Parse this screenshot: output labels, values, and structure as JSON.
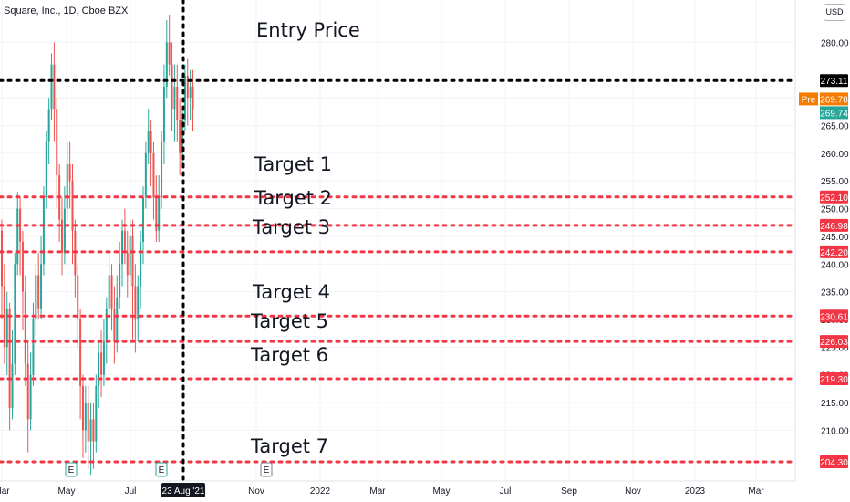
{
  "header": {
    "symbol_title": "Square, Inc., 1D, Cboe BZX",
    "currency": "USD"
  },
  "colors": {
    "up": "#26a69a",
    "down": "#ef5350",
    "entry_line": "#000000",
    "target_line": "#f23645",
    "premarket": "#f57c00",
    "current": "#26a69a",
    "grid": "#f0f3fa"
  },
  "chart_data": {
    "type": "candlestick",
    "title": "Square, Inc., 1D, Cboe BZX",
    "currency": "USD",
    "ylim": [
      202,
      285
    ],
    "y_ticks": [
      210,
      215,
      220,
      225,
      230,
      235,
      240,
      245,
      250,
      255,
      260,
      265,
      270,
      280
    ],
    "x_ticks": [
      "Mar",
      "May",
      "Jul",
      "Nov",
      "2022",
      "Mar",
      "May",
      "Jul",
      "Sep",
      "Nov",
      "2023",
      "Mar"
    ],
    "crosshair_date": "23 Aug '21",
    "earnings_markers": [
      "E",
      "E",
      "E"
    ],
    "price_labels": {
      "entry": 273.11,
      "premarket_label": "Pre",
      "premarket": 269.78,
      "last": 269.74
    },
    "levels": [
      {
        "name": "Entry Price",
        "price": 273.11
      },
      {
        "name": "Target 1",
        "price": 252.1
      },
      {
        "name": "Target 2",
        "price": 246.98
      },
      {
        "name": "Target 3",
        "price": 242.2
      },
      {
        "name": "Target 4",
        "price": 230.61
      },
      {
        "name": "Target 5",
        "price": 226.03
      },
      {
        "name": "Target 6",
        "price": 219.3
      },
      {
        "name": "Target 7",
        "price": 204.3
      }
    ],
    "candles": [
      [
        246,
        236,
        248,
        230
      ],
      [
        236,
        225,
        240,
        222
      ],
      [
        225,
        232,
        235,
        220
      ],
      [
        232,
        214,
        233,
        210
      ],
      [
        214,
        222,
        228,
        212
      ],
      [
        222,
        240,
        242,
        220
      ],
      [
        240,
        250,
        253,
        238
      ],
      [
        250,
        244,
        252,
        238
      ],
      [
        244,
        235,
        246,
        228
      ],
      [
        235,
        222,
        238,
        218
      ],
      [
        222,
        212,
        226,
        206
      ],
      [
        212,
        220,
        224,
        210
      ],
      [
        220,
        230,
        233,
        218
      ],
      [
        230,
        238,
        240,
        227
      ],
      [
        238,
        232,
        242,
        230
      ],
      [
        232,
        240,
        245,
        230
      ],
      [
        240,
        252,
        254,
        238
      ],
      [
        252,
        262,
        264,
        250
      ],
      [
        262,
        268,
        270,
        258
      ],
      [
        268,
        276,
        278,
        266
      ],
      [
        276,
        268,
        280,
        262
      ],
      [
        268,
        256,
        270,
        250
      ],
      [
        256,
        248,
        258,
        244
      ],
      [
        248,
        242,
        252,
        238
      ],
      [
        242,
        250,
        254,
        240
      ],
      [
        250,
        258,
        262,
        248
      ],
      [
        258,
        255,
        262,
        250
      ],
      [
        255,
        246,
        258,
        240
      ],
      [
        246,
        238,
        248,
        234
      ],
      [
        238,
        230,
        240,
        225
      ],
      [
        230,
        218,
        232,
        212
      ],
      [
        218,
        210,
        220,
        205
      ],
      [
        210,
        215,
        218,
        206
      ],
      [
        215,
        208,
        218,
        203
      ],
      [
        208,
        212,
        215,
        202
      ],
      [
        212,
        208,
        215,
        203
      ],
      [
        208,
        218,
        220,
        206
      ],
      [
        218,
        224,
        226,
        214
      ],
      [
        224,
        220,
        228,
        216
      ],
      [
        220,
        226,
        230,
        218
      ],
      [
        226,
        232,
        234,
        222
      ],
      [
        232,
        238,
        242,
        230
      ],
      [
        238,
        232,
        240,
        228
      ],
      [
        232,
        226,
        236,
        222
      ],
      [
        226,
        234,
        238,
        224
      ],
      [
        234,
        240,
        244,
        232
      ],
      [
        240,
        246,
        248,
        236
      ],
      [
        246,
        242,
        250,
        240
      ],
      [
        242,
        238,
        246,
        234
      ],
      [
        238,
        245,
        248,
        236
      ],
      [
        245,
        236,
        248,
        226
      ],
      [
        236,
        230,
        240,
        224
      ],
      [
        230,
        236,
        238,
        226
      ],
      [
        236,
        244,
        246,
        232
      ],
      [
        244,
        252,
        254,
        240
      ],
      [
        252,
        260,
        262,
        250
      ],
      [
        260,
        264,
        268,
        258
      ],
      [
        264,
        260,
        266,
        254
      ],
      [
        260,
        252,
        262,
        248
      ],
      [
        252,
        246,
        256,
        244
      ],
      [
        246,
        252,
        256,
        244
      ],
      [
        252,
        262,
        264,
        250
      ],
      [
        262,
        272,
        276,
        258
      ],
      [
        272,
        280,
        284,
        270
      ],
      [
        280,
        276,
        285,
        274
      ],
      [
        276,
        268,
        280,
        264
      ],
      [
        268,
        272,
        276,
        262
      ],
      [
        272,
        266,
        276,
        262
      ],
      [
        266,
        260,
        270,
        256
      ],
      [
        260,
        266,
        268,
        258
      ],
      [
        266,
        274,
        276,
        264
      ],
      [
        274,
        270,
        277,
        265
      ],
      [
        270,
        272,
        275,
        266
      ],
      [
        272,
        268,
        275,
        264
      ]
    ]
  }
}
